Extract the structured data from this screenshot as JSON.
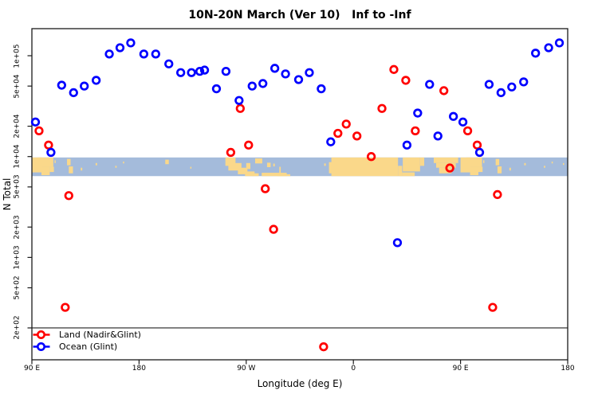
{
  "title": "10N-20N March (Ver 10)   Inf to -Inf",
  "axes": {
    "x_label": "Longitude (deg E)",
    "y_label": "N Total"
  },
  "legend": [
    {
      "label": "Land (Nadir&Glint)",
      "color": "#ff0000"
    },
    {
      "label": "Ocean (Glint)",
      "color": "#0000ff"
    }
  ],
  "colors": {
    "land": "#ff0000",
    "ocean": "#0000ff",
    "map_land": "#fad88a",
    "map_ocean": "#a4bbdb",
    "frame": "#1a1a1a",
    "ref_line": "#4a4a4a"
  },
  "chart_data": {
    "type": "scatter",
    "title": "10N-20N March (Ver 10)   Inf to -Inf",
    "xlabel": "Longitude (deg E)",
    "ylabel": "N Total",
    "x_axis": {
      "type": "linear",
      "range_deg": [
        90,
        540
      ],
      "note": "longitude axis spans 450 deg; 90E-180 band repeated at both ends",
      "ticks": [
        {
          "deg": 90,
          "label": "90 E"
        },
        {
          "deg": 180,
          "label": "180"
        },
        {
          "deg": 270,
          "label": "90 W"
        },
        {
          "deg": 360,
          "label": "0"
        },
        {
          "deg": 450,
          "label": "90 E"
        },
        {
          "deg": 540,
          "label": "180"
        }
      ]
    },
    "y_axis": {
      "type": "log",
      "range": [
        140,
        180000
      ],
      "ticks": [
        {
          "value": 100000,
          "label": "1e+05"
        },
        {
          "value": 50000,
          "label": "5e+04"
        },
        {
          "value": 20000,
          "label": "2e+04"
        },
        {
          "value": 10000,
          "label": "1e+04"
        },
        {
          "value": 5000,
          "label": "5e+03"
        },
        {
          "value": 2000,
          "label": "2e+03"
        },
        {
          "value": 1000,
          "label": "1e+03"
        },
        {
          "value": 500,
          "label": "5e+02"
        },
        {
          "value": 200,
          "label": "2e+02"
        }
      ]
    },
    "reference_line_n": 200,
    "grid": false,
    "legend_position": "bottom-left",
    "series": [
      {
        "id": "land",
        "name": "Land (Nadir&Glint)",
        "color": "#ff0000",
        "points": [
          [
            96,
            18000
          ],
          [
            104,
            13000
          ],
          [
            118,
            320
          ],
          [
            121,
            4100
          ],
          [
            257,
            11000
          ],
          [
            265,
            30000
          ],
          [
            272,
            13000
          ],
          [
            286,
            4800
          ],
          [
            293,
            1900
          ],
          [
            335,
            130
          ],
          [
            347,
            17000
          ],
          [
            354,
            21000
          ],
          [
            363,
            16000
          ],
          [
            375,
            10000
          ],
          [
            384,
            30000
          ],
          [
            394,
            73000
          ],
          [
            404,
            57000
          ],
          [
            412,
            18000
          ],
          [
            436,
            45000
          ],
          [
            441,
            7700
          ],
          [
            456,
            18000
          ],
          [
            464,
            13000
          ],
          [
            477,
            320
          ],
          [
            481,
            4200
          ]
        ]
      },
      {
        "id": "ocean",
        "name": "Ocean (Glint)",
        "color": "#0000ff",
        "points": [
          [
            93,
            22000
          ],
          [
            106,
            11000
          ],
          [
            115,
            51000
          ],
          [
            125,
            43000
          ],
          [
            134,
            50000
          ],
          [
            144,
            57000
          ],
          [
            155,
            104000
          ],
          [
            164,
            120000
          ],
          [
            173,
            134000
          ],
          [
            184,
            104000
          ],
          [
            194,
            104000
          ],
          [
            205,
            83000
          ],
          [
            215,
            68000
          ],
          [
            224,
            68000
          ],
          [
            231,
            70000
          ],
          [
            235,
            72000
          ],
          [
            245,
            47000
          ],
          [
            253,
            70000
          ],
          [
            264,
            36000
          ],
          [
            275,
            50000
          ],
          [
            284,
            53000
          ],
          [
            294,
            75000
          ],
          [
            303,
            66000
          ],
          [
            314,
            58000
          ],
          [
            323,
            68000
          ],
          [
            333,
            47000
          ],
          [
            341,
            14000
          ],
          [
            397,
            1400
          ],
          [
            405,
            13000
          ],
          [
            414,
            27000
          ],
          [
            424,
            52000
          ],
          [
            431,
            16000
          ],
          [
            444,
            25000
          ],
          [
            452,
            22000
          ],
          [
            466,
            11000
          ],
          [
            474,
            52000
          ],
          [
            484,
            43000
          ],
          [
            493,
            49000
          ],
          [
            503,
            55000
          ],
          [
            513,
            106000
          ],
          [
            524,
            120000
          ],
          [
            533,
            134000
          ]
        ]
      }
    ],
    "map_strip": {
      "description": "world coastline band 10N-20N overlaid across plot",
      "value_top": 9800,
      "value_bottom": 6400,
      "land_blocks": [
        [
          90,
          98.5,
          0,
          0.8
        ],
        [
          95,
          108,
          0,
          0.5
        ],
        [
          98,
          105,
          0.5,
          0.95
        ],
        [
          105,
          108.5,
          0.5,
          0.78
        ],
        [
          109,
          110,
          0.15,
          0.3
        ],
        [
          119.5,
          122.5,
          0.08,
          0.42
        ],
        [
          121,
          124.5,
          0.48,
          0.85
        ],
        [
          131,
          132.3,
          0.55,
          0.7
        ],
        [
          143.5,
          144.8,
          0.3,
          0.42
        ],
        [
          160,
          161.2,
          0.45,
          0.55
        ],
        [
          166.5,
          167.5,
          0.22,
          0.32
        ],
        [
          202,
          205,
          0.12,
          0.36
        ],
        [
          223,
          224,
          0.5,
          0.6
        ],
        [
          252.5,
          261,
          0,
          0.45
        ],
        [
          255,
          266,
          0.3,
          0.7
        ],
        [
          263,
          271,
          0.55,
          0.9
        ],
        [
          269,
          277,
          0.75,
          1
        ],
        [
          270,
          273.5,
          0.3,
          0.62
        ],
        [
          275,
          280.5,
          0.85,
          1
        ],
        [
          277.5,
          283.5,
          0.05,
          0.32
        ],
        [
          287.5,
          290.5,
          0.28,
          0.52
        ],
        [
          292.7,
          294,
          0.33,
          0.48
        ],
        [
          297.8,
          299,
          0.5,
          0.95
        ],
        [
          283,
          304,
          0.82,
          1
        ],
        [
          296,
          307,
          0.9,
          1
        ],
        [
          335.5,
          336.8,
          0.32,
          0.45
        ],
        [
          339.5,
          342,
          0.25,
          0.85
        ],
        [
          341.5,
          397.5,
          0,
          1
        ],
        [
          397.5,
          401,
          0.45,
          1
        ],
        [
          401,
          411.5,
          0.8,
          1
        ],
        [
          401.5,
          416,
          0,
          0.75
        ],
        [
          416,
          419.5,
          0,
          0.45
        ],
        [
          427.5,
          448,
          0,
          0.3
        ],
        [
          429.5,
          446,
          0.3,
          0.55
        ],
        [
          432,
          442.5,
          0.55,
          0.85
        ],
        [
          450,
          458.5,
          0,
          0.8
        ],
        [
          455,
          468,
          0,
          0.5
        ],
        [
          458,
          465,
          0.5,
          0.95
        ],
        [
          465,
          468.5,
          0.5,
          0.78
        ],
        [
          469,
          470,
          0.15,
          0.3
        ],
        [
          479.5,
          482.5,
          0.08,
          0.42
        ],
        [
          481,
          484.5,
          0.48,
          0.85
        ],
        [
          491,
          492.3,
          0.55,
          0.7
        ],
        [
          503.5,
          504.8,
          0.3,
          0.42
        ],
        [
          520,
          521.2,
          0.45,
          0.55
        ],
        [
          526.5,
          527.5,
          0.22,
          0.32
        ],
        [
          536,
          537,
          0.3,
          0.4
        ]
      ]
    }
  }
}
